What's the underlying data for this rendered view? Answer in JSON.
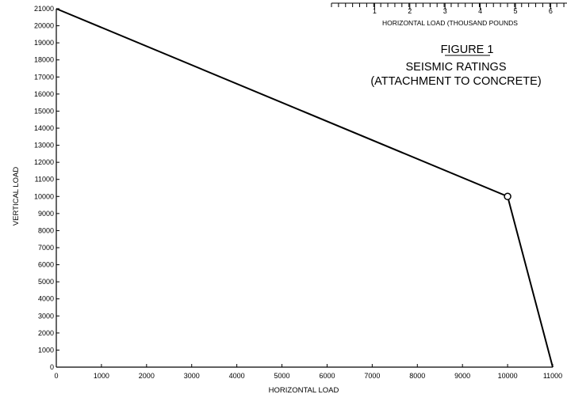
{
  "chart_data": {
    "type": "line",
    "title": "SEISMIC RATINGS",
    "subtitle": "(ATTACHMENT TO CONCRETE)",
    "figure_label": "FIGURE 1",
    "xlabel": "HORIZONTAL LOAD",
    "ylabel": "VERTICAL LOAD",
    "xlim": [
      0,
      11000
    ],
    "ylim": [
      0,
      21000
    ],
    "x_ticks": [
      "0",
      "1000",
      "2000",
      "3000",
      "4000",
      "5000",
      "6000",
      "7000",
      "8000",
      "9000",
      "10000",
      "11000"
    ],
    "y_ticks": [
      "0",
      "1000",
      "2000",
      "3000",
      "4000",
      "5000",
      "6000",
      "7000",
      "8000",
      "9000",
      "10000",
      "11000",
      "12000",
      "13000",
      "14000",
      "15000",
      "16000",
      "17000",
      "18000",
      "19000",
      "20000",
      "21000"
    ],
    "grid": false,
    "series": [
      {
        "x": [
          0,
          10000,
          11000
        ],
        "y": [
          21000,
          10000,
          0
        ]
      }
    ],
    "marker_point": {
      "x": 10000,
      "y": 10000
    },
    "inset_axis": {
      "label": "HORIZONTAL LOAD (THOUSAND POUNDS",
      "ticks": [
        "1",
        "2",
        "3",
        "4",
        "5",
        "6"
      ]
    }
  }
}
